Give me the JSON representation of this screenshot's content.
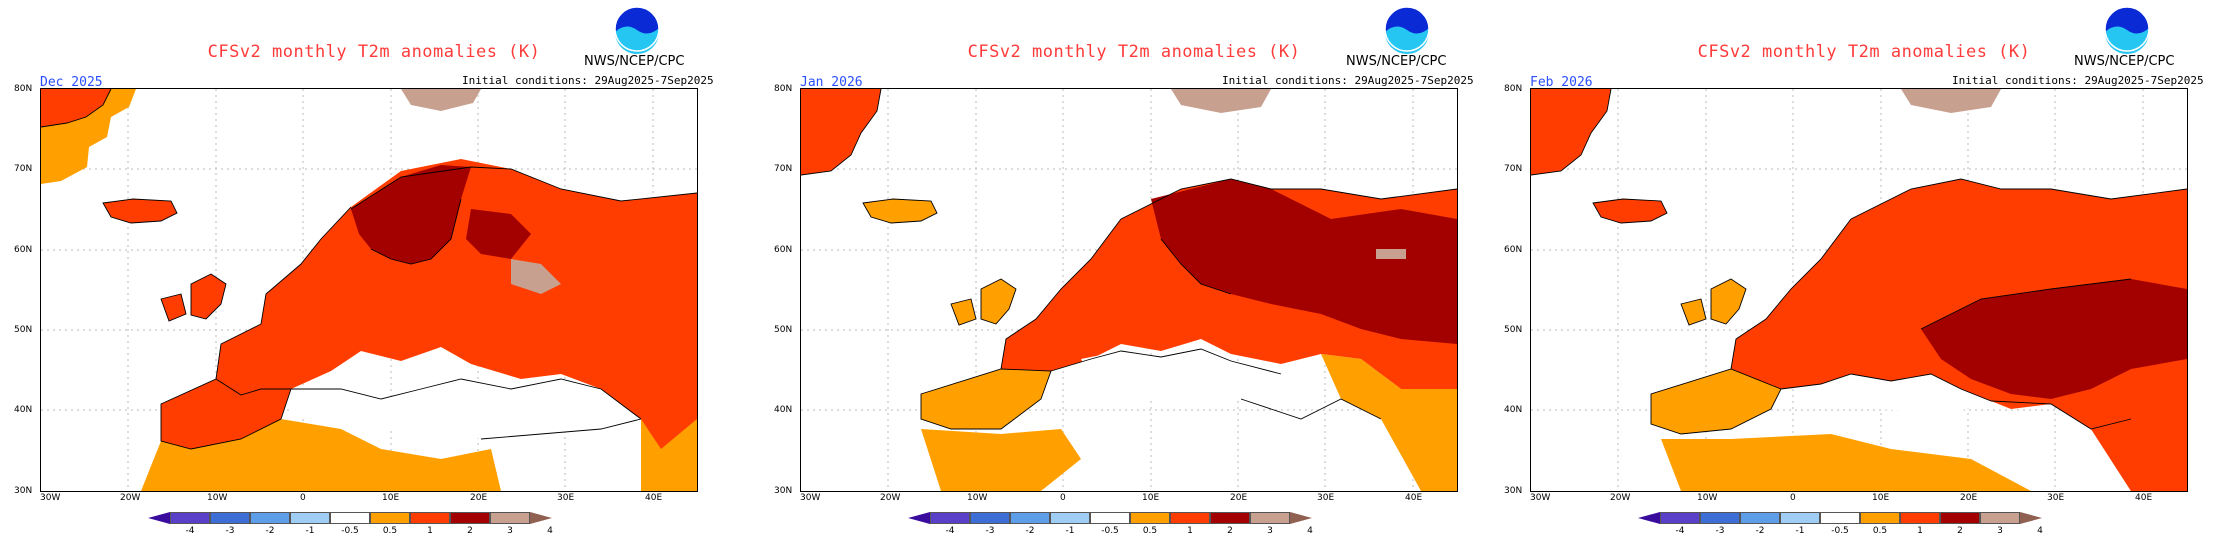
{
  "legend": {
    "labels": [
      "-4",
      "-3",
      "-2",
      "-1",
      "-0.5",
      "0.5",
      "1",
      "2",
      "3",
      "4"
    ],
    "colors": {
      "lt4": "#3a0c9e",
      "m4_m3": "#5a3fc8",
      "m3_m2": "#3d6ed6",
      "m2_m1": "#5e9ee8",
      "m1_m05": "#9fcdf3",
      "neutral": "#ffffff",
      "p05_1": "#ffa000",
      "p1_2": "#ff3d00",
      "p2_3": "#a30000",
      "p3_4": "#c8a090",
      "gt4": "#906050"
    }
  },
  "panels": [
    {
      "title": "CFSv2 monthly T2m anomalies (K)",
      "agency": "NWS/NCEP/CPC",
      "initial": "Initial conditions: 29Aug2025-7Sep2025",
      "month": "Dec 2025",
      "yticks": [
        "80N",
        "70N",
        "60N",
        "50N",
        "40N",
        "30N"
      ],
      "xticks": [
        "30W",
        "20W",
        "10W",
        "0",
        "10E",
        "20E",
        "30E",
        "40E"
      ]
    },
    {
      "title": "CFSv2 monthly T2m anomalies (K)",
      "agency": "NWS/NCEP/CPC",
      "initial": "Initial conditions: 29Aug2025-7Sep2025",
      "month": "Jan 2026",
      "yticks": [
        "80N",
        "70N",
        "60N",
        "50N",
        "40N",
        "30N"
      ],
      "xticks": [
        "30W",
        "20W",
        "10W",
        "0",
        "10E",
        "20E",
        "30E",
        "40E"
      ]
    },
    {
      "title": "CFSv2 monthly T2m anomalies (K)",
      "agency": "NWS/NCEP/CPC",
      "initial": "Initial conditions: 29Aug2025-7Sep2025",
      "month": "Feb 2026",
      "yticks": [
        "80N",
        "70N",
        "60N",
        "50N",
        "40N",
        "30N"
      ],
      "xticks": [
        "30W",
        "20W",
        "10W",
        "0",
        "10E",
        "20E",
        "30E",
        "40E"
      ]
    }
  ]
}
